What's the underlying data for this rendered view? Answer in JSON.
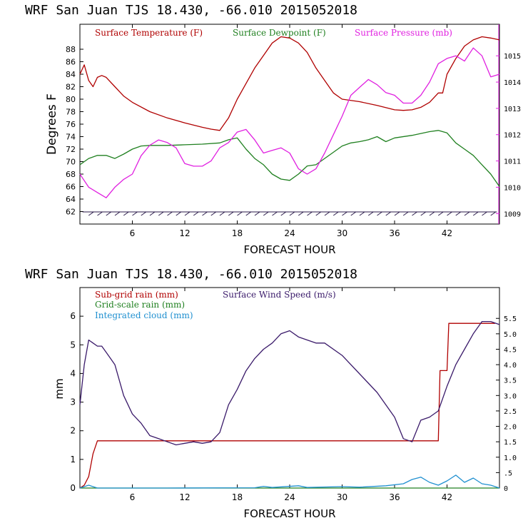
{
  "chart_data": [
    {
      "type": "line",
      "title": "WRF  San Juan TJS  18.430, -66.010  2015052018",
      "xlabel": "FORECAST HOUR",
      "ylabel": "Degrees F",
      "xlim": [
        0,
        48
      ],
      "ylim": [
        60,
        92
      ],
      "y2lim": [
        1008.6,
        1016.2
      ],
      "x_ticks": [
        6,
        12,
        18,
        24,
        30,
        36,
        42
      ],
      "y_ticks": [
        62,
        64,
        66,
        68,
        70,
        72,
        74,
        76,
        78,
        80,
        82,
        84,
        86,
        88
      ],
      "y2_ticks": [
        1009,
        1010,
        1011,
        1012,
        1013,
        1014,
        1015
      ],
      "wind_barbs": "calm wind barbs along the bottom of the panel",
      "series": [
        {
          "name": "Surface Temperature (F)",
          "color": "#b00000",
          "axis": "left",
          "x": [
            0,
            0.5,
            1,
            1.5,
            2,
            2.5,
            3,
            4,
            5,
            6,
            8,
            10,
            12,
            14,
            15,
            16,
            17,
            18,
            19,
            20,
            21,
            22,
            23,
            24,
            25,
            26,
            27,
            28,
            29,
            30,
            32,
            34,
            36,
            37,
            38,
            39,
            40,
            41,
            41.5,
            42,
            43,
            44,
            45,
            46,
            47,
            48
          ],
          "values": [
            84,
            85.5,
            83,
            82,
            83.5,
            83.8,
            83.5,
            82,
            80.5,
            79.5,
            78,
            77,
            76.2,
            75.5,
            75.2,
            75,
            77,
            80,
            82.5,
            85,
            87,
            89,
            90,
            89.8,
            89,
            87.5,
            85,
            83,
            81,
            80,
            79.6,
            79,
            78.3,
            78.2,
            78.3,
            78.7,
            79.5,
            81,
            81,
            84,
            86.5,
            88.5,
            89.5,
            90,
            89.8,
            89.5
          ]
        },
        {
          "name": "Surface Dewpoint (F)",
          "color": "#208020",
          "axis": "left",
          "x": [
            0,
            1,
            2,
            3,
            4,
            5,
            6,
            7,
            8,
            10,
            12,
            14,
            16,
            17,
            18,
            19,
            20,
            21,
            22,
            23,
            24,
            25,
            26,
            27,
            28,
            29,
            30,
            31,
            32,
            33,
            34,
            35,
            36,
            38,
            40,
            41,
            42,
            43,
            44,
            45,
            46,
            47,
            48
          ],
          "values": [
            69.5,
            70.5,
            71,
            71,
            70.5,
            71.2,
            72,
            72.5,
            72.6,
            72.6,
            72.7,
            72.8,
            73,
            73.5,
            73.8,
            72,
            70.5,
            69.5,
            68,
            67.2,
            67,
            68,
            69.3,
            69.5,
            70.5,
            71.5,
            72.5,
            73,
            73.2,
            73.5,
            74,
            73.2,
            73.8,
            74.2,
            74.8,
            75,
            74.6,
            73,
            72,
            71,
            69.5,
            68,
            66
          ]
        },
        {
          "name": "Surface Pressure (mb)",
          "color": "#e020e0",
          "axis": "right",
          "x": [
            0,
            1,
            2,
            3,
            4,
            5,
            6,
            7,
            8,
            9,
            10,
            11,
            12,
            13,
            14,
            15,
            16,
            17,
            18,
            19,
            20,
            21,
            22,
            23,
            24,
            25,
            26,
            27,
            28,
            29,
            30,
            31,
            32,
            33,
            34,
            35,
            36,
            37,
            38,
            39,
            40,
            41,
            42,
            43,
            44,
            45,
            46,
            47,
            48
          ],
          "values": [
            1010.5,
            1010,
            1009.8,
            1009.6,
            1010,
            1010.3,
            1010.5,
            1011.2,
            1011.6,
            1011.8,
            1011.7,
            1011.5,
            1010.9,
            1010.8,
            1010.8,
            1011,
            1011.5,
            1011.7,
            1012.1,
            1012.2,
            1011.8,
            1011.3,
            1011.4,
            1011.5,
            1011.3,
            1010.7,
            1010.5,
            1010.7,
            1011.3,
            1012,
            1012.7,
            1013.5,
            1013.8,
            1014.1,
            1013.9,
            1013.6,
            1013.5,
            1013.2,
            1013.2,
            1013.5,
            1014,
            1014.7,
            1014.9,
            1015,
            1014.8,
            1015.3,
            1015,
            1014.2,
            1014.3
          ]
        }
      ]
    },
    {
      "type": "line",
      "title": "WRF  San Juan TJS  18.430, -66.010  2015052018",
      "xlabel": "FORECAST HOUR",
      "ylabel": "mm",
      "xlim": [
        0,
        48
      ],
      "ylim": [
        0,
        7
      ],
      "y2lim": [
        0,
        6.5
      ],
      "x_ticks": [
        6,
        12,
        18,
        24,
        30,
        36,
        42
      ],
      "y_ticks": [
        0,
        1,
        2,
        3,
        4,
        5,
        6
      ],
      "y2_ticks": [
        "0",
        ".5",
        "1.0",
        "1.5",
        "2.0",
        "2.5",
        "3.0",
        "3.5",
        "4.0",
        "4.5",
        "5.0",
        "5.5"
      ],
      "y2_tick_values": [
        0,
        0.5,
        1.0,
        1.5,
        2.0,
        2.5,
        3.0,
        3.5,
        4.0,
        4.5,
        5.0,
        5.5
      ],
      "series": [
        {
          "name": "Sub-grid rain (mm)",
          "color": "#b00000",
          "axis": "left",
          "x": [
            0,
            0.5,
            1,
            1.5,
            2,
            41,
            41.2,
            42,
            42.2,
            43,
            47.5
          ],
          "values": [
            0,
            0.1,
            0.4,
            1.2,
            1.65,
            1.65,
            4.1,
            4.1,
            5.75,
            5.75,
            5.75
          ]
        },
        {
          "name": "Grid-scale rain (mm)",
          "color": "#208020",
          "axis": "left",
          "x": [
            0,
            48
          ],
          "values": [
            0,
            0
          ]
        },
        {
          "name": "Integrated cloud (mm)",
          "color": "#2090d0",
          "axis": "left",
          "x": [
            0,
            1,
            2,
            3,
            10,
            20,
            21,
            22,
            25,
            26,
            30,
            32,
            35,
            37,
            38,
            39,
            40,
            41,
            42,
            43,
            44,
            45,
            46,
            47,
            48
          ],
          "values": [
            0,
            0.1,
            0,
            0,
            0,
            0.01,
            0.06,
            0.02,
            0.08,
            0.02,
            0.05,
            0.03,
            0.08,
            0.15,
            0.3,
            0.38,
            0.2,
            0.1,
            0.25,
            0.45,
            0.2,
            0.35,
            0.15,
            0.1,
            0
          ]
        },
        {
          "name": "Surface Wind Speed (m/s)",
          "color": "#3a1a6a",
          "axis": "right",
          "x": [
            0,
            0.5,
            1,
            1.5,
            2,
            2.5,
            3,
            3.5,
            4,
            5,
            6,
            7,
            8,
            9,
            10,
            11,
            12,
            13,
            14,
            15,
            16,
            17,
            18,
            19,
            20,
            21,
            22,
            23,
            24,
            25,
            26,
            27,
            28,
            30,
            32,
            34,
            36,
            37,
            38,
            39,
            40,
            41,
            42,
            43,
            44,
            45,
            46,
            47,
            48
          ],
          "values": [
            2.7,
            4,
            4.8,
            4.7,
            4.6,
            4.6,
            4.4,
            4.2,
            4,
            3,
            2.4,
            2.1,
            1.7,
            1.6,
            1.5,
            1.4,
            1.45,
            1.5,
            1.45,
            1.5,
            1.8,
            2.7,
            3.2,
            3.8,
            4.2,
            4.5,
            4.7,
            5,
            5.1,
            4.9,
            4.8,
            4.7,
            4.7,
            4.3,
            3.7,
            3.1,
            2.3,
            1.6,
            1.5,
            2.2,
            2.3,
            2.5,
            3.3,
            4,
            4.5,
            5,
            5.4,
            5.4,
            5.3
          ]
        }
      ]
    }
  ]
}
